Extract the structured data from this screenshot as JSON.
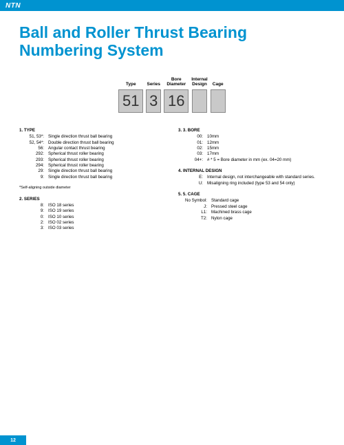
{
  "brand": "NTN",
  "title": "Ball and Roller Thrust Bearing Numbering System",
  "diagram": {
    "boxes": [
      {
        "label": "Type",
        "value": "51",
        "cls": "w1"
      },
      {
        "label": "Series",
        "value": "3",
        "cls": "w2"
      },
      {
        "label": "Bore\nDiameter",
        "value": "16",
        "cls": "w3"
      },
      {
        "label": "Internal\nDesign",
        "value": "",
        "cls": "w4"
      },
      {
        "label": "Cage",
        "value": "",
        "cls": "w5"
      }
    ]
  },
  "left": {
    "type": {
      "head": "1.    TYPE",
      "rows": [
        {
          "k": "51, 53*:",
          "v": "Single direction thrust ball bearing"
        },
        {
          "k": "52, 54*:",
          "v": "Double direction thrust ball bearing"
        },
        {
          "k": "56:",
          "v": "Angular contact thrust bearing"
        },
        {
          "k": "292:",
          "v": "Spherical thrust roller bearing"
        },
        {
          "k": "293:",
          "v": "Spherical thrust roller bearing"
        },
        {
          "k": "294:",
          "v": "Spherical thrust roller bearing"
        },
        {
          "k": "29:",
          "v": "Single direction thrust ball bearing"
        },
        {
          "k": "9:",
          "v": "Single direction thrust ball bearing"
        }
      ]
    },
    "note": "*Self-aligning outside diameter",
    "series": {
      "head": "2.    SERIES",
      "rows": [
        {
          "k": "8:",
          "v": "ISO 18 series"
        },
        {
          "k": "9:",
          "v": "ISO 19 series"
        },
        {
          "k": "0:",
          "v": "ISO 10 series"
        },
        {
          "k": "2:",
          "v": "ISO 02 series"
        },
        {
          "k": "3:",
          "v": "ISO 03 series"
        }
      ]
    }
  },
  "right": {
    "bore": {
      "head": "3.    3. BORE",
      "rows": [
        {
          "k": "00:",
          "v": "10mm"
        },
        {
          "k": "01:",
          "v": "12mm"
        },
        {
          "k": "02:",
          "v": "15mm"
        },
        {
          "k": "03:",
          "v": "17mm"
        },
        {
          "k": "04+:",
          "v": "# * 5 = Bore diameter in mm (ex. 04=20 mm)"
        }
      ]
    },
    "internal": {
      "head": "4.    INTERNAL DESIGN",
      "rows": [
        {
          "k": "E:",
          "v": "Internal design, not interchangeable with standard series."
        },
        {
          "k": "U:",
          "v": "Misaligning ring included (type 53 and 54 only)"
        }
      ]
    },
    "cage": {
      "head": "5.    5. CAGE",
      "rows": [
        {
          "k": "No Symbol:",
          "v": "Standard cage"
        },
        {
          "k": "J:",
          "v": "Pressed steel cage"
        },
        {
          "k": "L1:",
          "v": "Machined brass cage"
        },
        {
          "k": "T2:",
          "v": "Nylon cage"
        }
      ]
    }
  },
  "page_number": "12"
}
